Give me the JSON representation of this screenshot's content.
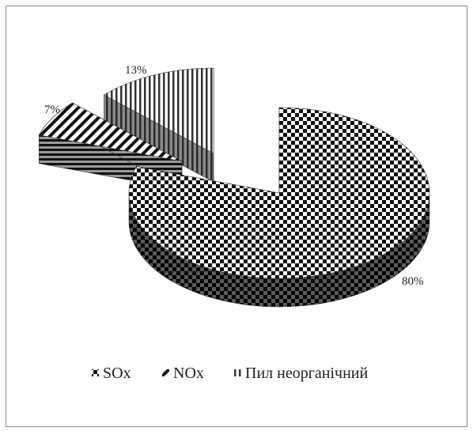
{
  "chart_data": {
    "type": "pie",
    "style": "3d-exploded",
    "categories": [
      "SOx",
      "NOx",
      "Пил неорганічний"
    ],
    "values": [
      80,
      7,
      13
    ],
    "data_labels": [
      "80%",
      "7%",
      "13%"
    ],
    "patterns": [
      "checkerboard",
      "diagonal-stripes",
      "vertical-stripes"
    ],
    "legend_position": "bottom",
    "title": ""
  },
  "legend": {
    "items": [
      {
        "label": "SOx"
      },
      {
        "label": "NOx"
      },
      {
        "label": "Пил неорганічний"
      }
    ]
  }
}
